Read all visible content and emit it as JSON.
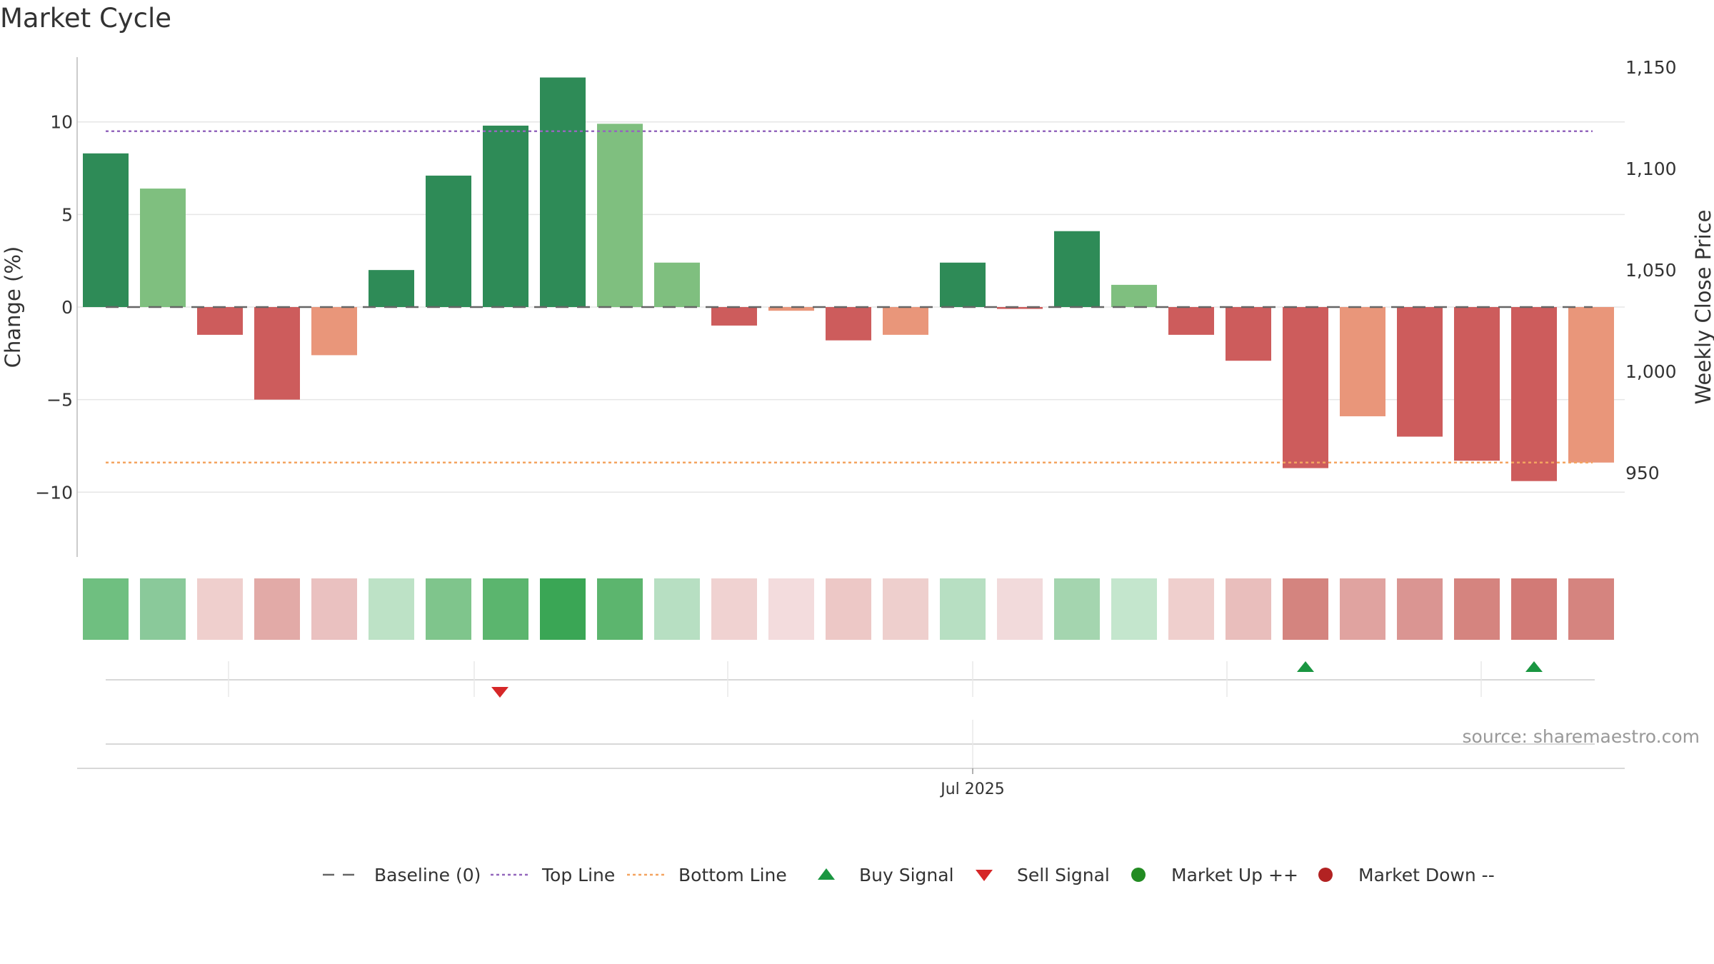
{
  "title": "Market Cycle",
  "source": "source: sharemaestro.com",
  "colors": {
    "up_strong": "#2e8b57",
    "up_light": "#7fbf7f",
    "down_strong": "#cd5c5c",
    "down_light": "#e9967a",
    "top_line": "#9467bd",
    "bottom_line": "#f4a460",
    "baseline": "#666666",
    "buy": "#1a9641",
    "sell": "#d62728",
    "market_up": "#228b22",
    "market_down": "#b22222"
  },
  "chart_data": {
    "type": "bar",
    "ylabel": "Change (%)",
    "y2label": "Weekly Close Price",
    "ylim": [
      -13.5,
      13.5
    ],
    "yticks": [
      10,
      5,
      0,
      -5,
      -10
    ],
    "ytick_labels": [
      "10",
      "5",
      "0",
      "−5",
      "−10"
    ],
    "y2ticks": [
      1150,
      1100,
      1050,
      1000,
      950
    ],
    "y2tick_labels": [
      "1,150",
      "1,100",
      "1,050",
      "1,000",
      "950"
    ],
    "xtick_label": "Jul 2025",
    "top_line": 9.5,
    "bottom_line": -8.4,
    "bars": [
      {
        "value": 8.3,
        "tone": "up_strong"
      },
      {
        "value": 6.4,
        "tone": "up_light"
      },
      {
        "value": -1.5,
        "tone": "down_strong"
      },
      {
        "value": -5.0,
        "tone": "down_strong"
      },
      {
        "value": -2.6,
        "tone": "down_light"
      },
      {
        "value": 2.0,
        "tone": "up_strong"
      },
      {
        "value": 7.1,
        "tone": "up_strong"
      },
      {
        "value": 9.8,
        "tone": "up_strong"
      },
      {
        "value": 12.4,
        "tone": "up_strong"
      },
      {
        "value": 9.9,
        "tone": "up_light"
      },
      {
        "value": 2.4,
        "tone": "up_light"
      },
      {
        "value": -1.0,
        "tone": "down_strong"
      },
      {
        "value": -0.2,
        "tone": "down_light"
      },
      {
        "value": -1.8,
        "tone": "down_strong"
      },
      {
        "value": -1.5,
        "tone": "down_light"
      },
      {
        "value": 2.4,
        "tone": "up_strong"
      },
      {
        "value": -0.1,
        "tone": "down_strong"
      },
      {
        "value": 4.1,
        "tone": "up_strong"
      },
      {
        "value": 1.2,
        "tone": "up_light"
      },
      {
        "value": -1.5,
        "tone": "down_strong"
      },
      {
        "value": -2.9,
        "tone": "down_strong"
      },
      {
        "value": -8.7,
        "tone": "down_strong"
      },
      {
        "value": -5.9,
        "tone": "down_light"
      },
      {
        "value": -7.0,
        "tone": "down_strong"
      },
      {
        "value": -8.3,
        "tone": "down_strong"
      },
      {
        "value": -9.4,
        "tone": "down_strong"
      },
      {
        "value": -8.4,
        "tone": "down_light"
      }
    ],
    "heatmap": [
      "#6fbf80",
      "#8ac99a",
      "#efcfcd",
      "#e2aaa7",
      "#eac1c0",
      "#bde2c6",
      "#7fc58c",
      "#5bb56e",
      "#3aa655",
      "#5cb56e",
      "#b7dfc2",
      "#f0d2d1",
      "#f3dcdd",
      "#edc8c6",
      "#eecfcd",
      "#b7dfc2",
      "#f2dadb",
      "#a4d5af",
      "#c4e6cd",
      "#efcfcd",
      "#e9bebc",
      "#d4847f",
      "#e0a3a0",
      "#da9592",
      "#d5847f",
      "#d27a76",
      "#d5847f"
    ],
    "buy_signals": [
      21,
      25
    ],
    "sell_signals": [
      7
    ],
    "legend": [
      {
        "label": "Baseline (0)",
        "marker": "dash",
        "color_key": "baseline"
      },
      {
        "label": "Top Line",
        "marker": "dot",
        "color_key": "top_line"
      },
      {
        "label": "Bottom Line",
        "marker": "dot",
        "color_key": "bottom_line"
      },
      {
        "label": "Buy Signal",
        "marker": "triangle-up",
        "color_key": "buy"
      },
      {
        "label": "Sell Signal",
        "marker": "triangle-down",
        "color_key": "sell"
      },
      {
        "label": "Market Up ++",
        "marker": "circle",
        "color_key": "market_up"
      },
      {
        "label": "Market Down --",
        "marker": "circle",
        "color_key": "market_down"
      }
    ]
  }
}
